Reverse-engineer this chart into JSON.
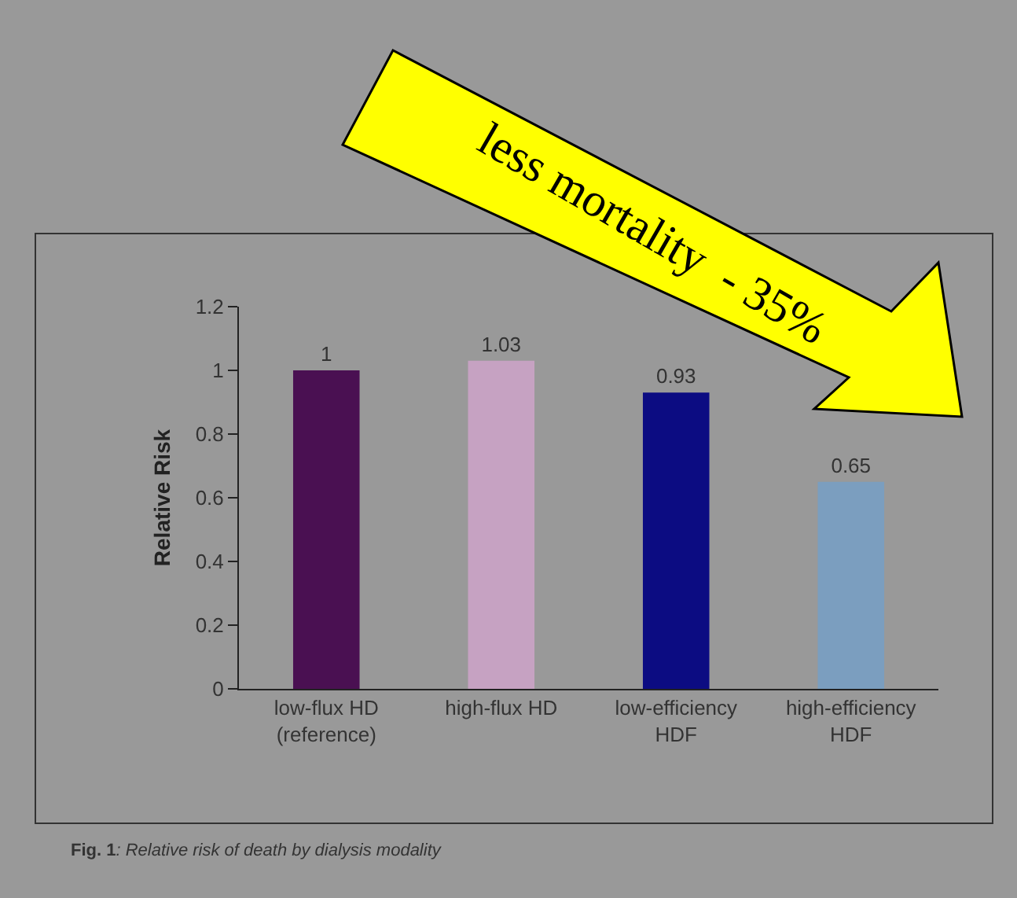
{
  "chart_data": {
    "type": "bar",
    "ylabel": "Relative Risk",
    "categories": [
      "low-flux HD (reference)",
      "high-flux HD",
      "low-efficiency HDF",
      "high-efficiency HDF"
    ],
    "values": [
      1,
      1.03,
      0.93,
      0.65
    ],
    "colors": [
      "#4a1052",
      "#c6a2c2",
      "#0c0c82",
      "#7b9ebf"
    ],
    "ylim": [
      0,
      1.2
    ],
    "yticks": [
      0,
      0.2,
      0.4,
      0.6,
      0.8,
      1,
      1.2
    ],
    "data_labels": true,
    "grid": false,
    "annotations": [
      "less mortality  - 35%",
      "Fig. 1: Relative risk of death by dialysis modality"
    ]
  }
}
